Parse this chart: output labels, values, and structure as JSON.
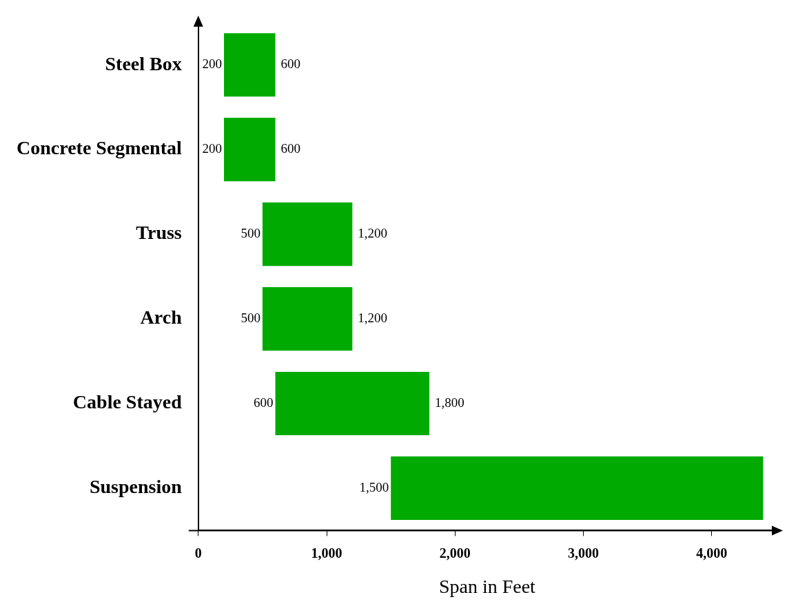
{
  "chart_data": {
    "type": "bar",
    "orientation": "horizontal",
    "xlabel": "Span in Feet",
    "categories": [
      "Steel Box",
      "Concrete Segmental",
      "Truss",
      "Arch",
      "Cable Stayed",
      "Suspension"
    ],
    "base": [
      200,
      200,
      500,
      500,
      600,
      1500
    ],
    "values": [
      400,
      400,
      700,
      700,
      1200,
      2900
    ],
    "color": "#00aa00",
    "xlim": [
      0,
      4500
    ],
    "xticks": [
      0,
      {
        "value": 1000,
        "label": "1,000"
      },
      {
        "value": 2000,
        "label": "2,000"
      },
      {
        "value": 3000,
        "label": "3,000"
      },
      {
        "value": 4000,
        "label": "4,000"
      }
    ],
    "annotations": [
      {
        "text": "200",
        "x": 200,
        "y": "Steel Box"
      },
      {
        "text": "600",
        "x": 600,
        "y": "Steel Box"
      },
      {
        "text": "200",
        "x": 200,
        "y": "Concrete Segmental"
      },
      {
        "text": "600",
        "x": 600,
        "y": "Concrete Segmental"
      },
      {
        "text": "500",
        "x": 500,
        "y": "Truss"
      },
      {
        "text": "1,200",
        "x": 1200,
        "y": "Truss"
      },
      {
        "text": "500",
        "x": 500,
        "y": "Arch"
      },
      {
        "text": "1,200",
        "x": 1200,
        "y": "Arch"
      },
      {
        "text": "600",
        "x": 600,
        "y": "Cable Stayed"
      },
      {
        "text": "1,800",
        "x": 1800,
        "y": "Cable Stayed"
      },
      {
        "text": "1,500",
        "x": 1500,
        "y": "Suspension"
      }
    ],
    "legend": false
  }
}
